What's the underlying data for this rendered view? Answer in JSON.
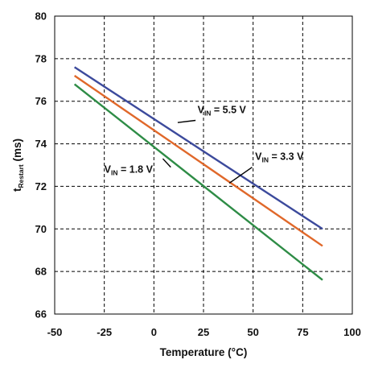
{
  "chart_data": {
    "type": "line",
    "xlabel": "Temperature (°C)",
    "ylabel": {
      "main": "t",
      "sub": "Restart",
      "unit": " (ms)"
    },
    "xlim": [
      -50,
      100
    ],
    "ylim": [
      66,
      80
    ],
    "xticks": [
      -50,
      -25,
      0,
      25,
      50,
      75,
      100
    ],
    "yticks": [
      66,
      68,
      70,
      72,
      74,
      76,
      78,
      80
    ],
    "grid": true,
    "series": [
      {
        "name": "V_IN = 5.5 V",
        "color": "#3c4a9c",
        "x": [
          -40,
          85
        ],
        "y": [
          77.6,
          70.0
        ]
      },
      {
        "name": "V_IN = 3.3 V",
        "color": "#e0682a",
        "x": [
          -40,
          85
        ],
        "y": [
          77.2,
          69.2
        ]
      },
      {
        "name": "V_IN = 1.8 V",
        "color": "#2e8c46",
        "x": [
          -40,
          85
        ],
        "y": [
          76.8,
          67.6
        ]
      }
    ],
    "annotations": [
      {
        "main": "V",
        "sub": "IN",
        "rest": " = 5.5 V",
        "series": 0,
        "text_at": [
          22,
          75.45
        ],
        "arrow_from": [
          21,
          75.1
        ],
        "arrow_to": [
          12,
          75.0
        ]
      },
      {
        "main": "V",
        "sub": "IN",
        "rest": " = 3.3 V",
        "series": 1,
        "text_at": [
          51,
          73.25
        ],
        "arrow_from": [
          49.5,
          72.9
        ],
        "arrow_to": [
          38,
          72.15
        ]
      },
      {
        "main": "V",
        "sub": "IN",
        "rest": " = 1.8 V",
        "series": 2,
        "text_at": [
          -25,
          72.65
        ],
        "arrow_from": [
          8.5,
          72.9
        ],
        "arrow_to": [
          4.5,
          73.3
        ]
      }
    ]
  }
}
